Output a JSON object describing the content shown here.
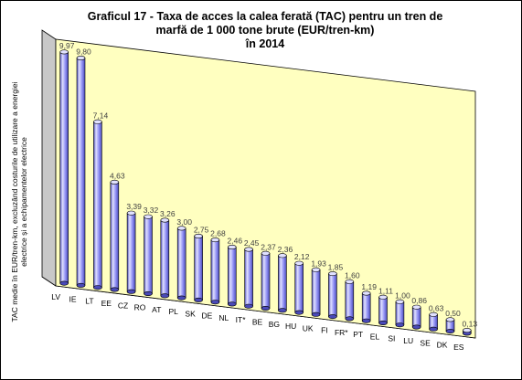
{
  "chart_data": {
    "type": "bar",
    "title_lines": [
      "Graficul 17 - Taxa de acces la calea ferată (TAC) pentru un tren de",
      "marfă de 1 000 tone brute (EUR/tren-km)",
      "în 2014"
    ],
    "ylabel_lines": [
      "TAC medie în EUR/tren-km, excluzând costurile de utilizare a energiei",
      "electrice și a echipamentelor electrice"
    ],
    "categories": [
      "LV",
      "IE",
      "LT",
      "EE",
      "CZ",
      "RO",
      "AT",
      "PL",
      "SK",
      "DE",
      "NL",
      "IT*",
      "BE",
      "BG",
      "HU",
      "UK",
      "FI",
      "FR*",
      "PT",
      "EL",
      "SI",
      "LU",
      "SE",
      "DK",
      "ES"
    ],
    "values": [
      9.97,
      9.8,
      7.14,
      4.63,
      3.39,
      3.32,
      3.26,
      3.0,
      2.75,
      2.68,
      2.46,
      2.45,
      2.37,
      2.36,
      2.12,
      1.93,
      1.85,
      1.6,
      1.19,
      1.11,
      1.0,
      0.86,
      0.63,
      0.5,
      0.13
    ],
    "value_labels": [
      "9,97",
      "9,80",
      "7,14",
      "4,63",
      "3,39",
      "3,32",
      "3,26",
      "3,00",
      "2,75",
      "2,68",
      "2,46",
      "2,45",
      "2,37",
      "2,36",
      "2,12",
      "1,93",
      "1,85",
      "1,60",
      "1,19",
      "1,11",
      "1,00",
      "0,86",
      "0,63",
      "0,50",
      "0,13"
    ],
    "ylim": [
      0,
      10
    ],
    "grid": false,
    "legend": "none",
    "colors": {
      "wall": "#ffffc0",
      "floor": "#c8c8c8",
      "bar_light": "#e0e0ff",
      "bar_mid": "#9090f4",
      "bar_dark": "#4a4ab8",
      "outline": "#000000",
      "value_text": "#404040"
    }
  }
}
